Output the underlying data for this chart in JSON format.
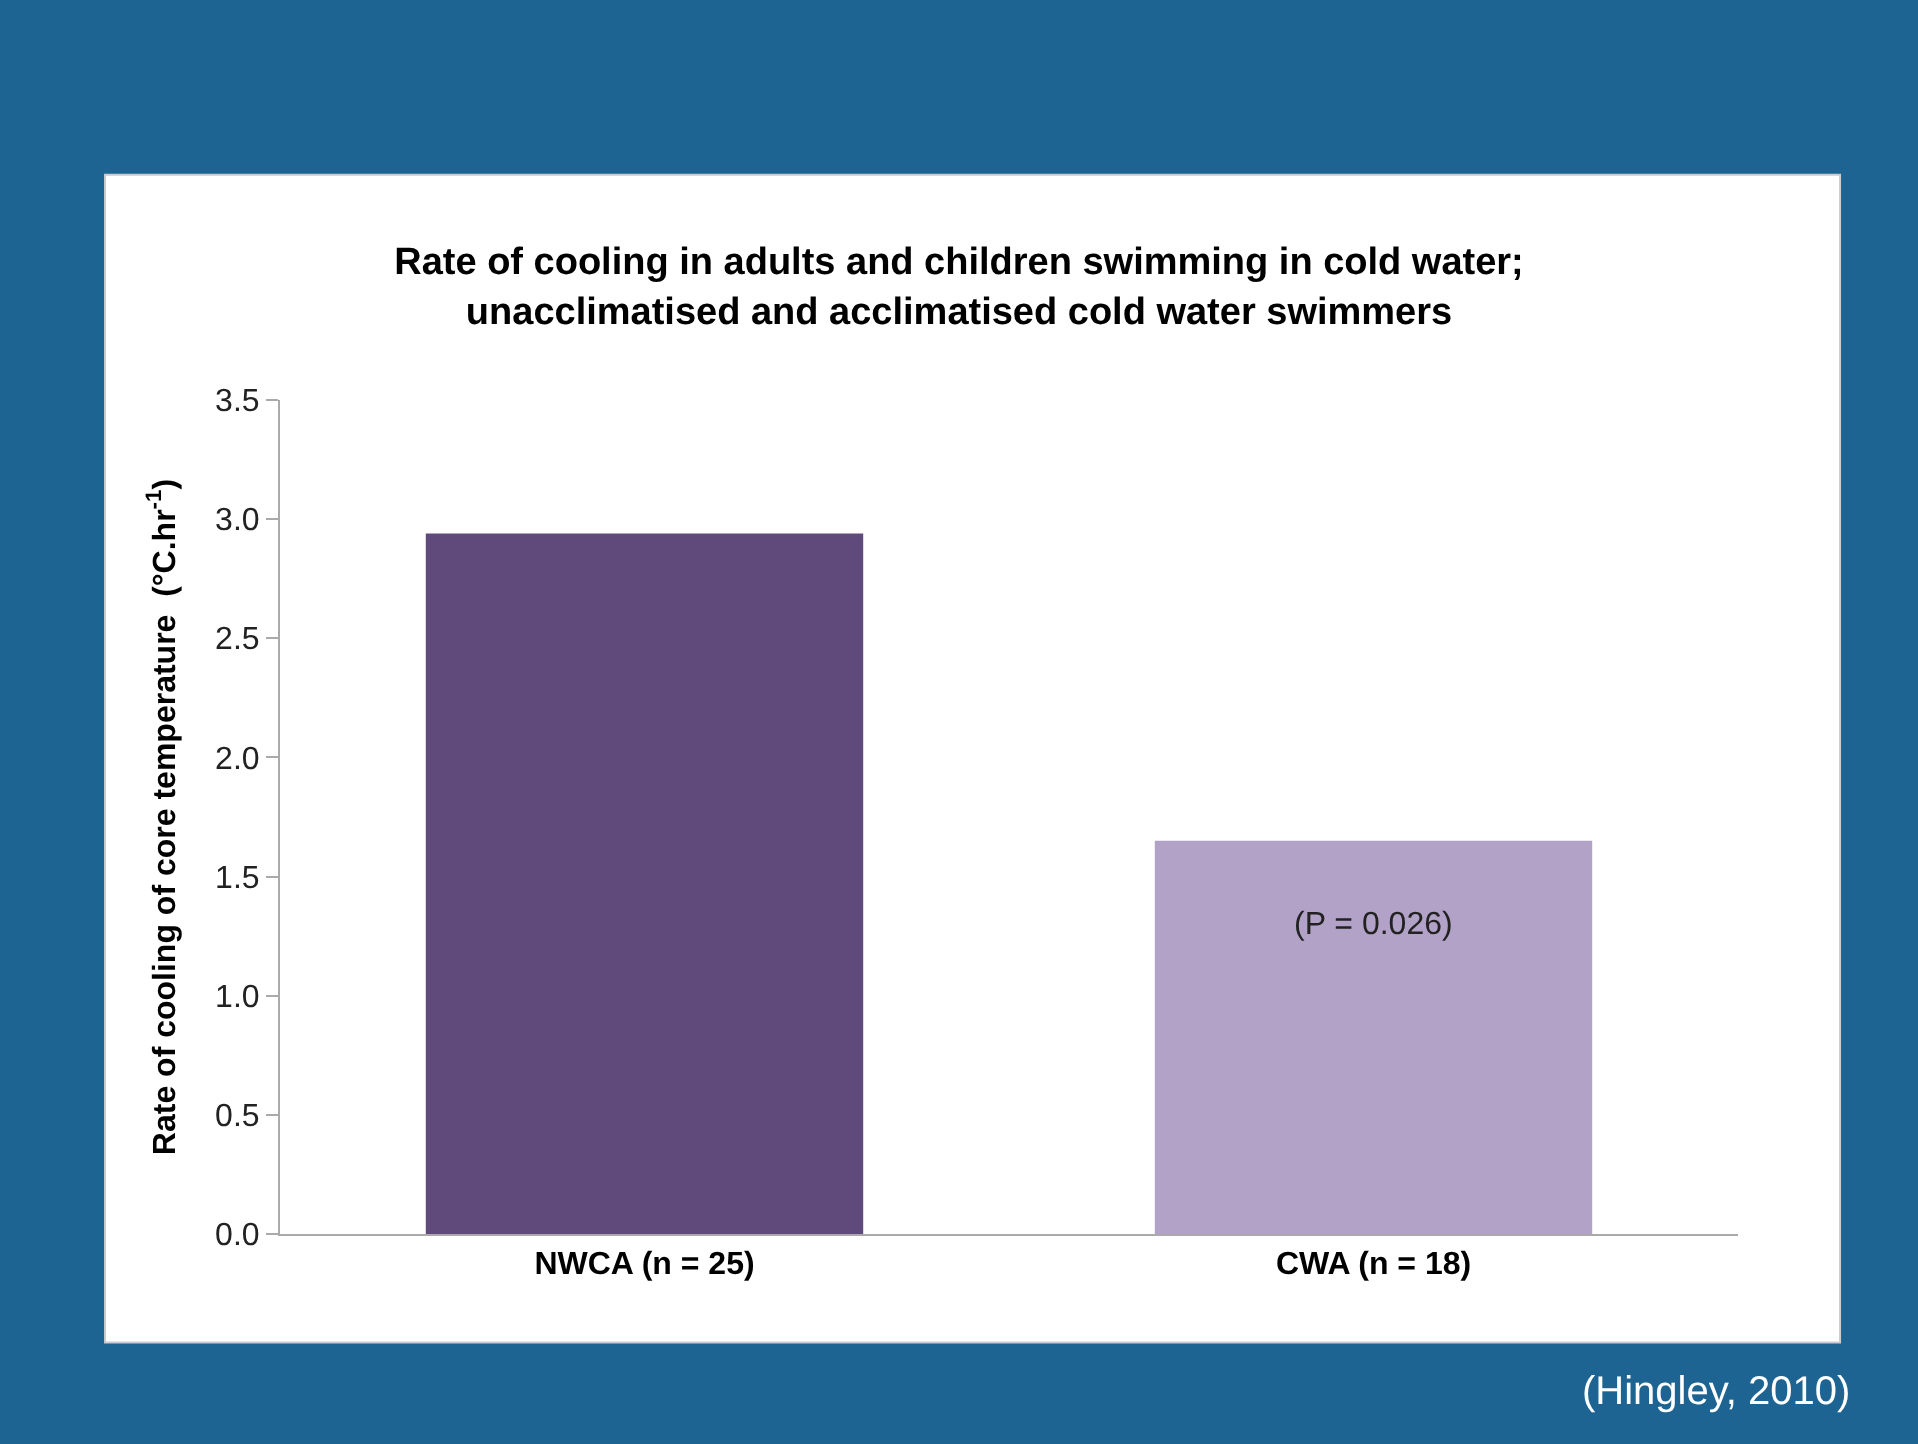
{
  "chart_data": {
    "type": "bar",
    "title": "Rate of cooling in adults and children swimming in cold water;\nunacclimatised and acclimatised cold water swimmers",
    "ylabel": "Rate of cooling of core temperature  (°C.hr$^{-1}$)",
    "categories": [
      "NWCA (n = 25)",
      "CWA (n = 18)"
    ],
    "values": [
      2.94,
      1.65
    ],
    "colors": [
      "#604a7b",
      "#b2a2c7"
    ],
    "ylim": [
      0,
      3.5
    ],
    "yticks": [
      {
        "value": 0,
        "label": "0.0"
      },
      {
        "value": 0.5,
        "label": "0.5"
      },
      {
        "value": 1,
        "label": "1.0"
      },
      {
        "value": 1.5,
        "label": "1.5"
      },
      {
        "value": 2,
        "label": "2.0"
      },
      {
        "value": 2.5,
        "label": "2.5"
      },
      {
        "value": 3,
        "label": "3.0"
      },
      {
        "value": 3.5,
        "label": "3.5"
      }
    ],
    "annotations": [
      "(P = 0.026)",
      "(Hingley, 2010)"
    ]
  }
}
